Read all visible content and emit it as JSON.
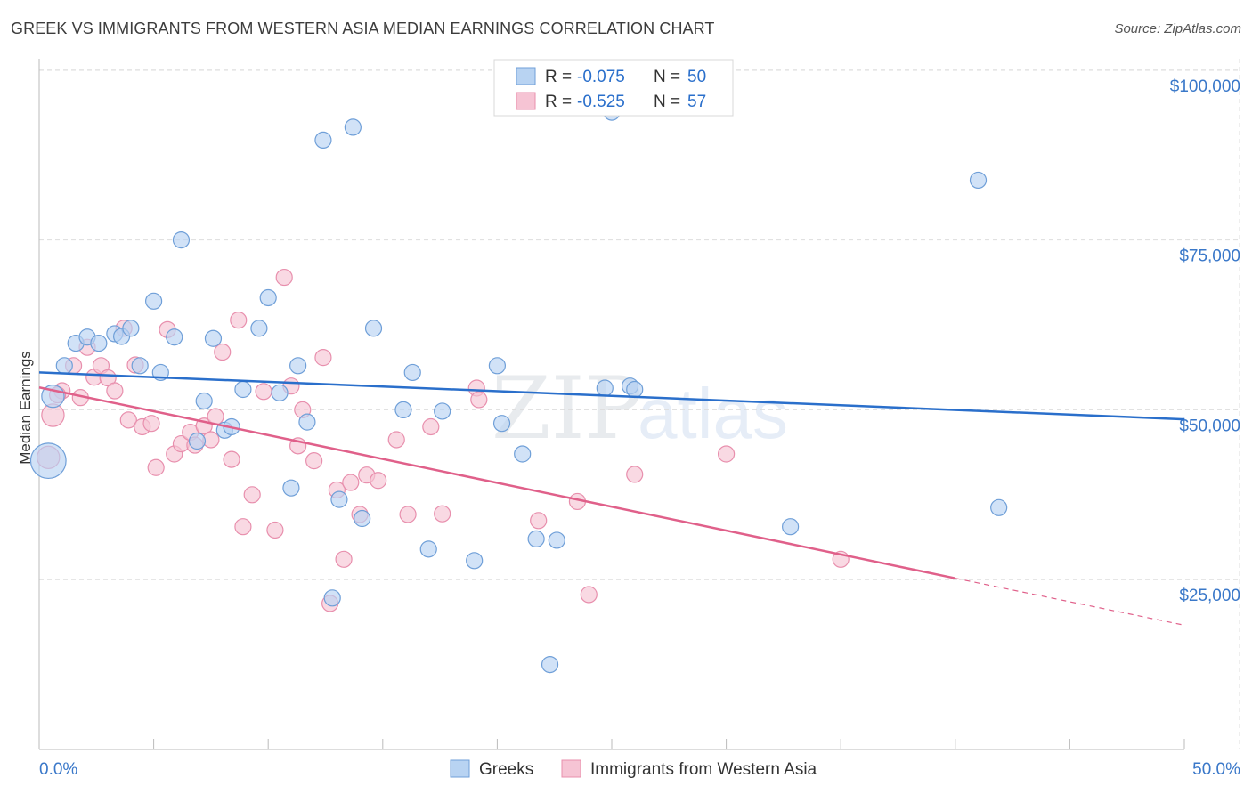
{
  "header": {
    "title": "GREEK VS IMMIGRANTS FROM WESTERN ASIA MEDIAN EARNINGS CORRELATION CHART",
    "source": "Source: ZipAtlas.com"
  },
  "watermark": {
    "zip": "ZIP",
    "atlas": "atlas"
  },
  "colors": {
    "blue_fill": "#b8d3f2",
    "blue_stroke": "#6f9fd8",
    "blue_line": "#2a6fcb",
    "pink_fill": "#f6c4d4",
    "pink_stroke": "#e88fad",
    "pink_line": "#e0608a",
    "axis_label": "#3a78c9",
    "grid": "#dddddd"
  },
  "chart_data": {
    "type": "scatter",
    "title": "GREEK VS IMMIGRANTS FROM WESTERN ASIA MEDIAN EARNINGS CORRELATION CHART",
    "xlabel": "",
    "ylabel": "Median Earnings",
    "xlim": [
      0,
      50
    ],
    "ylim": [
      0,
      105000
    ],
    "x_tick_labels": {
      "left": "0.0%",
      "right": "50.0%"
    },
    "y_ticks": [
      {
        "value": 25000,
        "label": "$25,000"
      },
      {
        "value": 50000,
        "label": "$50,000"
      },
      {
        "value": 75000,
        "label": "$75,000"
      },
      {
        "value": 100000,
        "label": "$100,000"
      }
    ],
    "legend_top": [
      {
        "r_label": "R =",
        "r_value": "-0.075",
        "n_label": "N =",
        "n_value": "50"
      },
      {
        "r_label": "R =",
        "r_value": "-0.525",
        "n_label": "N =",
        "n_value": "57"
      }
    ],
    "series": [
      {
        "name": "Greeks",
        "trend": {
          "x0": 0,
          "y0": 55500,
          "x1": 50,
          "y1": 48600
        },
        "points": [
          [
            0.4,
            42500,
            2.2
          ],
          [
            0.6,
            52000,
            1.4
          ],
          [
            1.1,
            56500,
            1
          ],
          [
            1.6,
            59800,
            1
          ],
          [
            2.1,
            60700,
            1
          ],
          [
            2.6,
            59800,
            1
          ],
          [
            3.3,
            61200,
            1
          ],
          [
            3.6,
            60800,
            1
          ],
          [
            4.0,
            62000,
            1
          ],
          [
            4.4,
            56500,
            1
          ],
          [
            5.0,
            66000,
            1
          ],
          [
            5.3,
            55500,
            1
          ],
          [
            5.9,
            60700,
            1
          ],
          [
            6.2,
            75000,
            1
          ],
          [
            6.9,
            45400,
            1
          ],
          [
            7.2,
            51300,
            1
          ],
          [
            7.6,
            60500,
            1
          ],
          [
            8.1,
            47000,
            1
          ],
          [
            8.4,
            47500,
            1
          ],
          [
            8.9,
            53000,
            1
          ],
          [
            9.6,
            62000,
            1
          ],
          [
            10.0,
            66500,
            1
          ],
          [
            10.5,
            52500,
            1
          ],
          [
            11.0,
            38500,
            1
          ],
          [
            11.3,
            56500,
            1
          ],
          [
            11.7,
            48200,
            1
          ],
          [
            12.4,
            89700,
            1
          ],
          [
            12.8,
            22300,
            1
          ],
          [
            13.1,
            36800,
            1
          ],
          [
            13.7,
            91600,
            1
          ],
          [
            14.1,
            34000,
            1
          ],
          [
            14.6,
            62000,
            1
          ],
          [
            15.9,
            50000,
            1
          ],
          [
            16.3,
            55500,
            1
          ],
          [
            17.0,
            29500,
            1
          ],
          [
            17.6,
            49800,
            1
          ],
          [
            19.0,
            27800,
            1
          ],
          [
            20.0,
            56500,
            1
          ],
          [
            20.2,
            48000,
            1
          ],
          [
            21.1,
            43500,
            1
          ],
          [
            21.7,
            31000,
            1
          ],
          [
            22.3,
            12500,
            1
          ],
          [
            22.6,
            30800,
            1
          ],
          [
            25.0,
            93800,
            1
          ],
          [
            25.8,
            53500,
            1
          ],
          [
            26.0,
            53000,
            1
          ],
          [
            32.8,
            32800,
            1
          ],
          [
            41.0,
            83800,
            1
          ],
          [
            41.9,
            35600,
            1
          ],
          [
            24.7,
            53200,
            1
          ]
        ]
      },
      {
        "name": "Immigrants from Western Asia",
        "trend": {
          "x0": 0,
          "y0": 53300,
          "x1": 40,
          "y1": 25200,
          "x_ext": 50,
          "y_ext": 18300
        },
        "points": [
          [
            0.4,
            43000,
            1.4
          ],
          [
            0.6,
            49200,
            1.4
          ],
          [
            1.0,
            52800,
            1
          ],
          [
            1.5,
            56500,
            1
          ],
          [
            1.8,
            51800,
            1
          ],
          [
            2.1,
            59200,
            1
          ],
          [
            2.4,
            54800,
            1
          ],
          [
            2.7,
            56500,
            1
          ],
          [
            3.0,
            54700,
            1
          ],
          [
            3.3,
            52800,
            1
          ],
          [
            3.7,
            62000,
            1
          ],
          [
            3.9,
            48500,
            1
          ],
          [
            4.2,
            56600,
            1
          ],
          [
            4.5,
            47500,
            1
          ],
          [
            4.9,
            48000,
            1
          ],
          [
            5.1,
            41500,
            1
          ],
          [
            5.6,
            61800,
            1
          ],
          [
            5.9,
            43500,
            1
          ],
          [
            6.2,
            45000,
            1
          ],
          [
            6.6,
            46700,
            1
          ],
          [
            6.8,
            44800,
            1
          ],
          [
            7.2,
            47600,
            1
          ],
          [
            7.5,
            45600,
            1
          ],
          [
            7.7,
            49000,
            1
          ],
          [
            8.0,
            58500,
            1
          ],
          [
            8.4,
            42700,
            1
          ],
          [
            8.7,
            63200,
            1
          ],
          [
            8.9,
            32800,
            1
          ],
          [
            9.3,
            37500,
            1
          ],
          [
            9.8,
            52700,
            1
          ],
          [
            10.3,
            32300,
            1
          ],
          [
            10.7,
            69500,
            1
          ],
          [
            11.0,
            53500,
            1
          ],
          [
            11.3,
            44700,
            1
          ],
          [
            11.5,
            50000,
            1
          ],
          [
            12.0,
            42500,
            1
          ],
          [
            12.4,
            57700,
            1
          ],
          [
            12.7,
            21500,
            1
          ],
          [
            13.0,
            38200,
            1
          ],
          [
            13.3,
            28000,
            1
          ],
          [
            13.6,
            39300,
            1
          ],
          [
            14.0,
            34600,
            1
          ],
          [
            14.3,
            40400,
            1
          ],
          [
            14.8,
            39600,
            1
          ],
          [
            15.6,
            45600,
            1
          ],
          [
            16.1,
            34600,
            1
          ],
          [
            17.1,
            47500,
            1
          ],
          [
            17.6,
            34700,
            1
          ],
          [
            19.1,
            53200,
            1
          ],
          [
            19.2,
            51500,
            1
          ],
          [
            21.8,
            33700,
            1
          ],
          [
            23.5,
            36500,
            1
          ],
          [
            24.0,
            22800,
            1
          ],
          [
            26.0,
            40500,
            1
          ],
          [
            30.0,
            43500,
            1
          ],
          [
            35.0,
            28000,
            1
          ],
          [
            0.8,
            52200,
            1
          ]
        ]
      }
    ]
  },
  "legend_bottom": [
    {
      "label": "Greeks"
    },
    {
      "label": "Immigrants from Western Asia"
    }
  ]
}
